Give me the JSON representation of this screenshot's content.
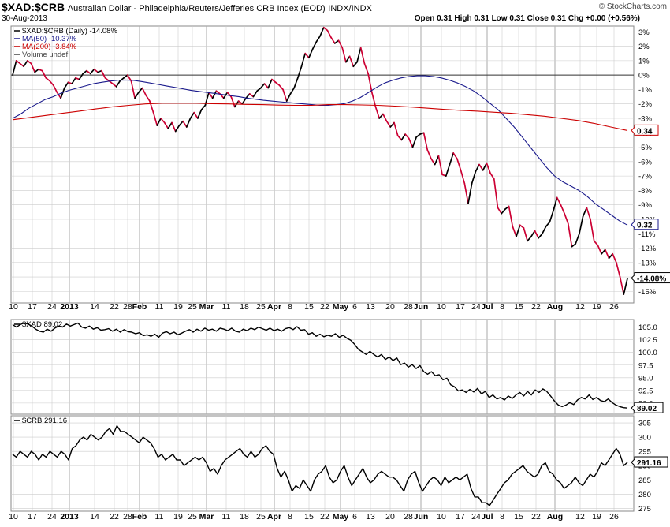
{
  "header": {
    "symbol": "$XAD:$CRB",
    "description": "Australian Dollar - Philadelphia/Reuters/Jefferies CRB Index (EOD)",
    "exchange": "INDX/INDX",
    "date": "30-Aug-2013",
    "ohlc": "Open 0.31 High 0.31 Low 0.31 Close 0.31 Chg +0.00 (+0.56%)",
    "brand": "© StockCharts.com"
  },
  "colors": {
    "price": "#000000",
    "ma50": "#1a1a8c",
    "ma200": "#cc0000",
    "down": "#cc0033",
    "grid": "#cccccc"
  },
  "chart_data": [
    {
      "type": "line",
      "title": "$XAD:$CRB",
      "legend": [
        "$XAD:$CRB (Daily) -14.08%",
        "MA(50) -10.37%",
        "MA(200) -3.84%",
        "Volume undef"
      ],
      "y_ticks": [
        3,
        2,
        1,
        0,
        -1,
        -2,
        -3,
        -4,
        -5,
        -6,
        -7,
        -8,
        -9,
        -10,
        -11,
        -12,
        -13,
        -14,
        -15
      ],
      "y_tick_labels": [
        "3%",
        "2%",
        "1%",
        "0%",
        "-1%",
        "-2%",
        "-3%",
        "-4%",
        "-5%",
        "-6%",
        "-7%",
        "-8%",
        "-9%",
        "-10%",
        "-11%",
        "-12%",
        "-13%",
        "-14%",
        "-15%"
      ],
      "ylim": [
        -15.8,
        3.4
      ],
      "zero_line": 0,
      "price_pct": [
        0,
        1,
        0.8,
        0.6,
        1,
        0.8,
        0.2,
        0.4,
        0.3,
        -0.2,
        -0.4,
        -0.7,
        -1.2,
        -1.6,
        -0.9,
        -0.5,
        -0.6,
        -0.2,
        -0.3,
        0.1,
        0.3,
        0.1,
        0.4,
        0.2,
        0.3,
        -0.2,
        -0.4,
        -0.6,
        -0.8,
        -0.4,
        -0.2,
        0,
        -0.4,
        -1.6,
        -1.2,
        -0.9,
        -1.4,
        -1.8,
        -2.6,
        -3.5,
        -3,
        -3.3,
        -3.7,
        -3.3,
        -3.9,
        -3.5,
        -3.2,
        -3.6,
        -3,
        -2.6,
        -3,
        -2.4,
        -2.1,
        -1.2,
        -1.6,
        -1.1,
        -1.3,
        -1.6,
        -1.2,
        -1.5,
        -2.2,
        -1.8,
        -2,
        -1.6,
        -1.3,
        -1.5,
        -1.1,
        -0.9,
        -0.6,
        -0.9,
        -0.3,
        -0.5,
        -0.7,
        -1,
        -1.8,
        -1.3,
        -0.9,
        -0.2,
        0.6,
        1.5,
        1.2,
        1.8,
        2.3,
        2.7,
        3.3,
        3.1,
        2.6,
        2.2,
        2.4,
        1.9,
        0.9,
        1.3,
        0.6,
        0.9,
        1.9,
        0.8,
        0.1,
        -1.2,
        -2.2,
        -3,
        -2.7,
        -3.2,
        -3.6,
        -3.3,
        -4.2,
        -4.5,
        -4.1,
        -4.4,
        -5,
        -4.3,
        -4.1,
        -4,
        -5.2,
        -5.8,
        -6.2,
        -5.6,
        -6.9,
        -7,
        -6.2,
        -5.4,
        -5.8,
        -6.6,
        -7.5,
        -8.9,
        -7.5,
        -6.7,
        -6.2,
        -6.6,
        -6.1,
        -6.8,
        -7.2,
        -9.2,
        -9.6,
        -9.3,
        -9.1,
        -10.5,
        -11.2,
        -10.4,
        -10.6,
        -11.5,
        -11.2,
        -10.8,
        -11.3,
        -11,
        -10.5,
        -10.2,
        -9.4,
        -8.5,
        -9,
        -9.6,
        -10.3,
        -11.9,
        -11.7,
        -11,
        -9.8,
        -9.2,
        -10,
        -11.5,
        -11.8,
        -12.4,
        -12.1,
        -12.7,
        -12.4,
        -13,
        -14,
        -15.2,
        -14.1
      ],
      "ma50_pct": [
        -3,
        -2.7,
        -2.3,
        -2,
        -1.7,
        -1.5,
        -1.25,
        -1.05,
        -0.9,
        -0.75,
        -0.6,
        -0.5,
        -0.42,
        -0.36,
        -0.34,
        -0.37,
        -0.45,
        -0.55,
        -0.65,
        -0.75,
        -0.85,
        -0.95,
        -1.05,
        -1.13,
        -1.2,
        -1.27,
        -1.35,
        -1.43,
        -1.5,
        -1.6,
        -1.67,
        -1.75,
        -1.8,
        -1.85,
        -1.9,
        -1.95,
        -2,
        -2.05,
        -2.1,
        -2.1,
        -2.05,
        -1.98,
        -1.8,
        -1.55,
        -1.2,
        -0.85,
        -0.55,
        -0.35,
        -0.2,
        -0.1,
        -0.05,
        -0.05,
        -0.1,
        -0.2,
        -0.35,
        -0.55,
        -0.8,
        -1.1,
        -1.5,
        -1.95,
        -2.4,
        -3,
        -3.6,
        -4.3,
        -5,
        -5.7,
        -6.4,
        -7,
        -7.4,
        -7.7,
        -8,
        -8.4,
        -8.9,
        -9.3,
        -9.7,
        -10.1,
        -10.4
      ],
      "ma200_pct": [
        -3.1,
        -2.95,
        -2.8,
        -2.65,
        -2.5,
        -2.35,
        -2.2,
        -2.1,
        -2,
        -1.95,
        -1.95,
        -1.95,
        -1.98,
        -2,
        -2.03,
        -2.05,
        -2.08,
        -2.1,
        -2.1,
        -2.05,
        -2.05,
        -2.07,
        -2.1,
        -2.15,
        -2.22,
        -2.3,
        -2.38,
        -2.45,
        -2.5,
        -2.58,
        -2.65,
        -2.75,
        -2.85,
        -3,
        -3.15,
        -3.35,
        -3.6,
        -3.84
      ],
      "end_labels": [
        "0.34",
        "0.32",
        "-14.08%"
      ],
      "x_tick_labels": [
        "10",
        "17",
        "24",
        "2013",
        "14",
        "22",
        "28",
        "Feb",
        "11",
        "19",
        "25",
        "Mar",
        "11",
        "18",
        "25",
        "Apr",
        "8",
        "15",
        "22",
        "May",
        "6",
        "13",
        "20",
        "28",
        "Jun",
        "10",
        "17",
        "24",
        "Jul",
        "8",
        "15",
        "22",
        "Aug",
        "12",
        "19",
        "26"
      ]
    },
    {
      "type": "line",
      "title": "$XAD",
      "legend": [
        "$XAD 89.02"
      ],
      "y_ticks": [
        105,
        102.5,
        100,
        97.5,
        95,
        92.5,
        90
      ],
      "y_tick_labels": [
        "105.0",
        "102.5",
        "100.0",
        "97.5",
        "95.0",
        "92.5",
        "90.0"
      ],
      "ylim": [
        87.8,
        106.5
      ],
      "values": [
        105.5,
        105,
        105.5,
        105.8,
        105.6,
        105.2,
        104.6,
        104.2,
        104,
        104.6,
        104.2,
        104.8,
        105.2,
        105,
        105.6,
        105.2,
        105.5,
        105.8,
        105,
        104.8,
        105.2,
        104.6,
        104.9,
        104.4,
        104.5,
        104.7,
        104.2,
        104.6,
        104,
        104.5,
        104.1,
        104,
        103.7,
        103.9,
        103.3,
        103.5,
        103.2,
        103.6,
        103,
        103.8,
        104.1,
        103.7,
        104,
        103.5,
        103.8,
        104.2,
        104.5,
        104,
        104.6,
        104.2,
        104.8,
        104.4,
        104.6,
        104.2,
        104.8,
        104.6,
        104.3,
        104.8,
        104.2,
        104,
        104.6,
        104.3,
        104.8,
        104.5,
        105,
        104.7,
        104.4,
        104.8,
        104.3,
        104.6,
        104.2,
        104.7,
        104.9,
        104.5,
        105.1,
        104.4,
        104.5,
        103.6,
        103.9,
        103.2,
        103.6,
        103.1,
        103.4,
        103.2,
        103.7,
        103,
        103.4,
        102.8,
        102.4,
        101.6,
        100.6,
        100.1,
        99.6,
        100.2,
        99.6,
        99.1,
        99.6,
        98.6,
        99.1,
        98.4,
        98.9,
        97.6,
        97.9,
        97.1,
        97.6,
        96.8,
        97.4,
        96.2,
        95.7,
        96.2,
        95.4,
        95.6,
        94.6,
        94.9,
        93.6,
        93.2,
        92.4,
        92.6,
        92.1,
        92.7,
        92.2,
        92.9,
        91.8,
        92.3,
        91.1,
        91.6,
        90.8,
        91.1,
        90.6,
        91.4,
        90.9,
        91.6,
        92.1,
        91.4,
        92.3,
        91.6,
        92.6,
        92.1,
        92.8,
        92.3,
        91.4,
        90.4,
        89.6,
        89.3,
        89.6,
        90.1,
        89.7,
        90.6,
        91.1,
        90.8,
        91.6,
        90.7,
        91.1,
        90.5,
        90.3,
        90.8,
        90.1,
        89.6,
        89.3,
        89.1,
        89.02
      ],
      "end_labels": [
        "89.02"
      ]
    },
    {
      "type": "line",
      "title": "$CRB",
      "legend": [
        "$CRB 291.16"
      ],
      "y_ticks": [
        305,
        300,
        295,
        290,
        285,
        280,
        275
      ],
      "y_tick_labels": [
        "305",
        "300",
        "295",
        "290",
        "285",
        "280",
        "275"
      ],
      "ylim": [
        274,
        307.5
      ],
      "values": [
        294,
        293,
        295,
        294,
        293,
        295,
        294,
        292,
        294,
        293,
        295,
        294,
        293,
        295,
        294,
        292,
        296,
        297,
        299,
        300,
        299,
        301,
        300,
        299,
        300,
        302,
        303,
        301,
        304,
        302,
        302,
        301,
        300,
        299,
        298,
        300,
        299,
        298,
        296,
        293,
        294,
        292,
        293,
        294,
        292,
        292,
        290,
        291,
        292,
        293,
        292,
        293,
        291,
        288,
        289,
        287,
        290,
        292,
        293,
        294,
        295,
        296,
        294,
        293,
        295,
        293,
        294,
        296,
        297,
        295,
        294,
        289,
        286,
        288,
        285,
        281,
        283,
        282,
        285,
        283,
        281,
        285,
        287,
        288,
        290,
        286,
        284,
        285,
        288,
        290,
        286,
        283,
        285,
        287,
        289,
        286,
        284,
        285,
        287,
        288,
        287,
        286,
        286,
        285,
        283,
        281,
        285,
        287,
        288,
        284,
        281,
        283,
        285,
        286,
        285,
        283,
        286,
        284,
        285,
        286,
        285,
        286,
        287,
        282,
        279,
        279,
        277,
        277,
        276,
        278,
        280,
        282,
        284,
        285,
        287,
        288,
        289,
        290,
        288,
        287,
        286,
        287,
        290,
        291,
        288,
        287,
        285,
        284,
        282,
        283,
        284,
        286,
        284,
        283,
        285,
        287,
        286,
        288,
        291,
        290,
        292,
        294,
        296,
        294,
        290,
        291.16
      ],
      "end_labels": [
        "291.16"
      ]
    }
  ]
}
